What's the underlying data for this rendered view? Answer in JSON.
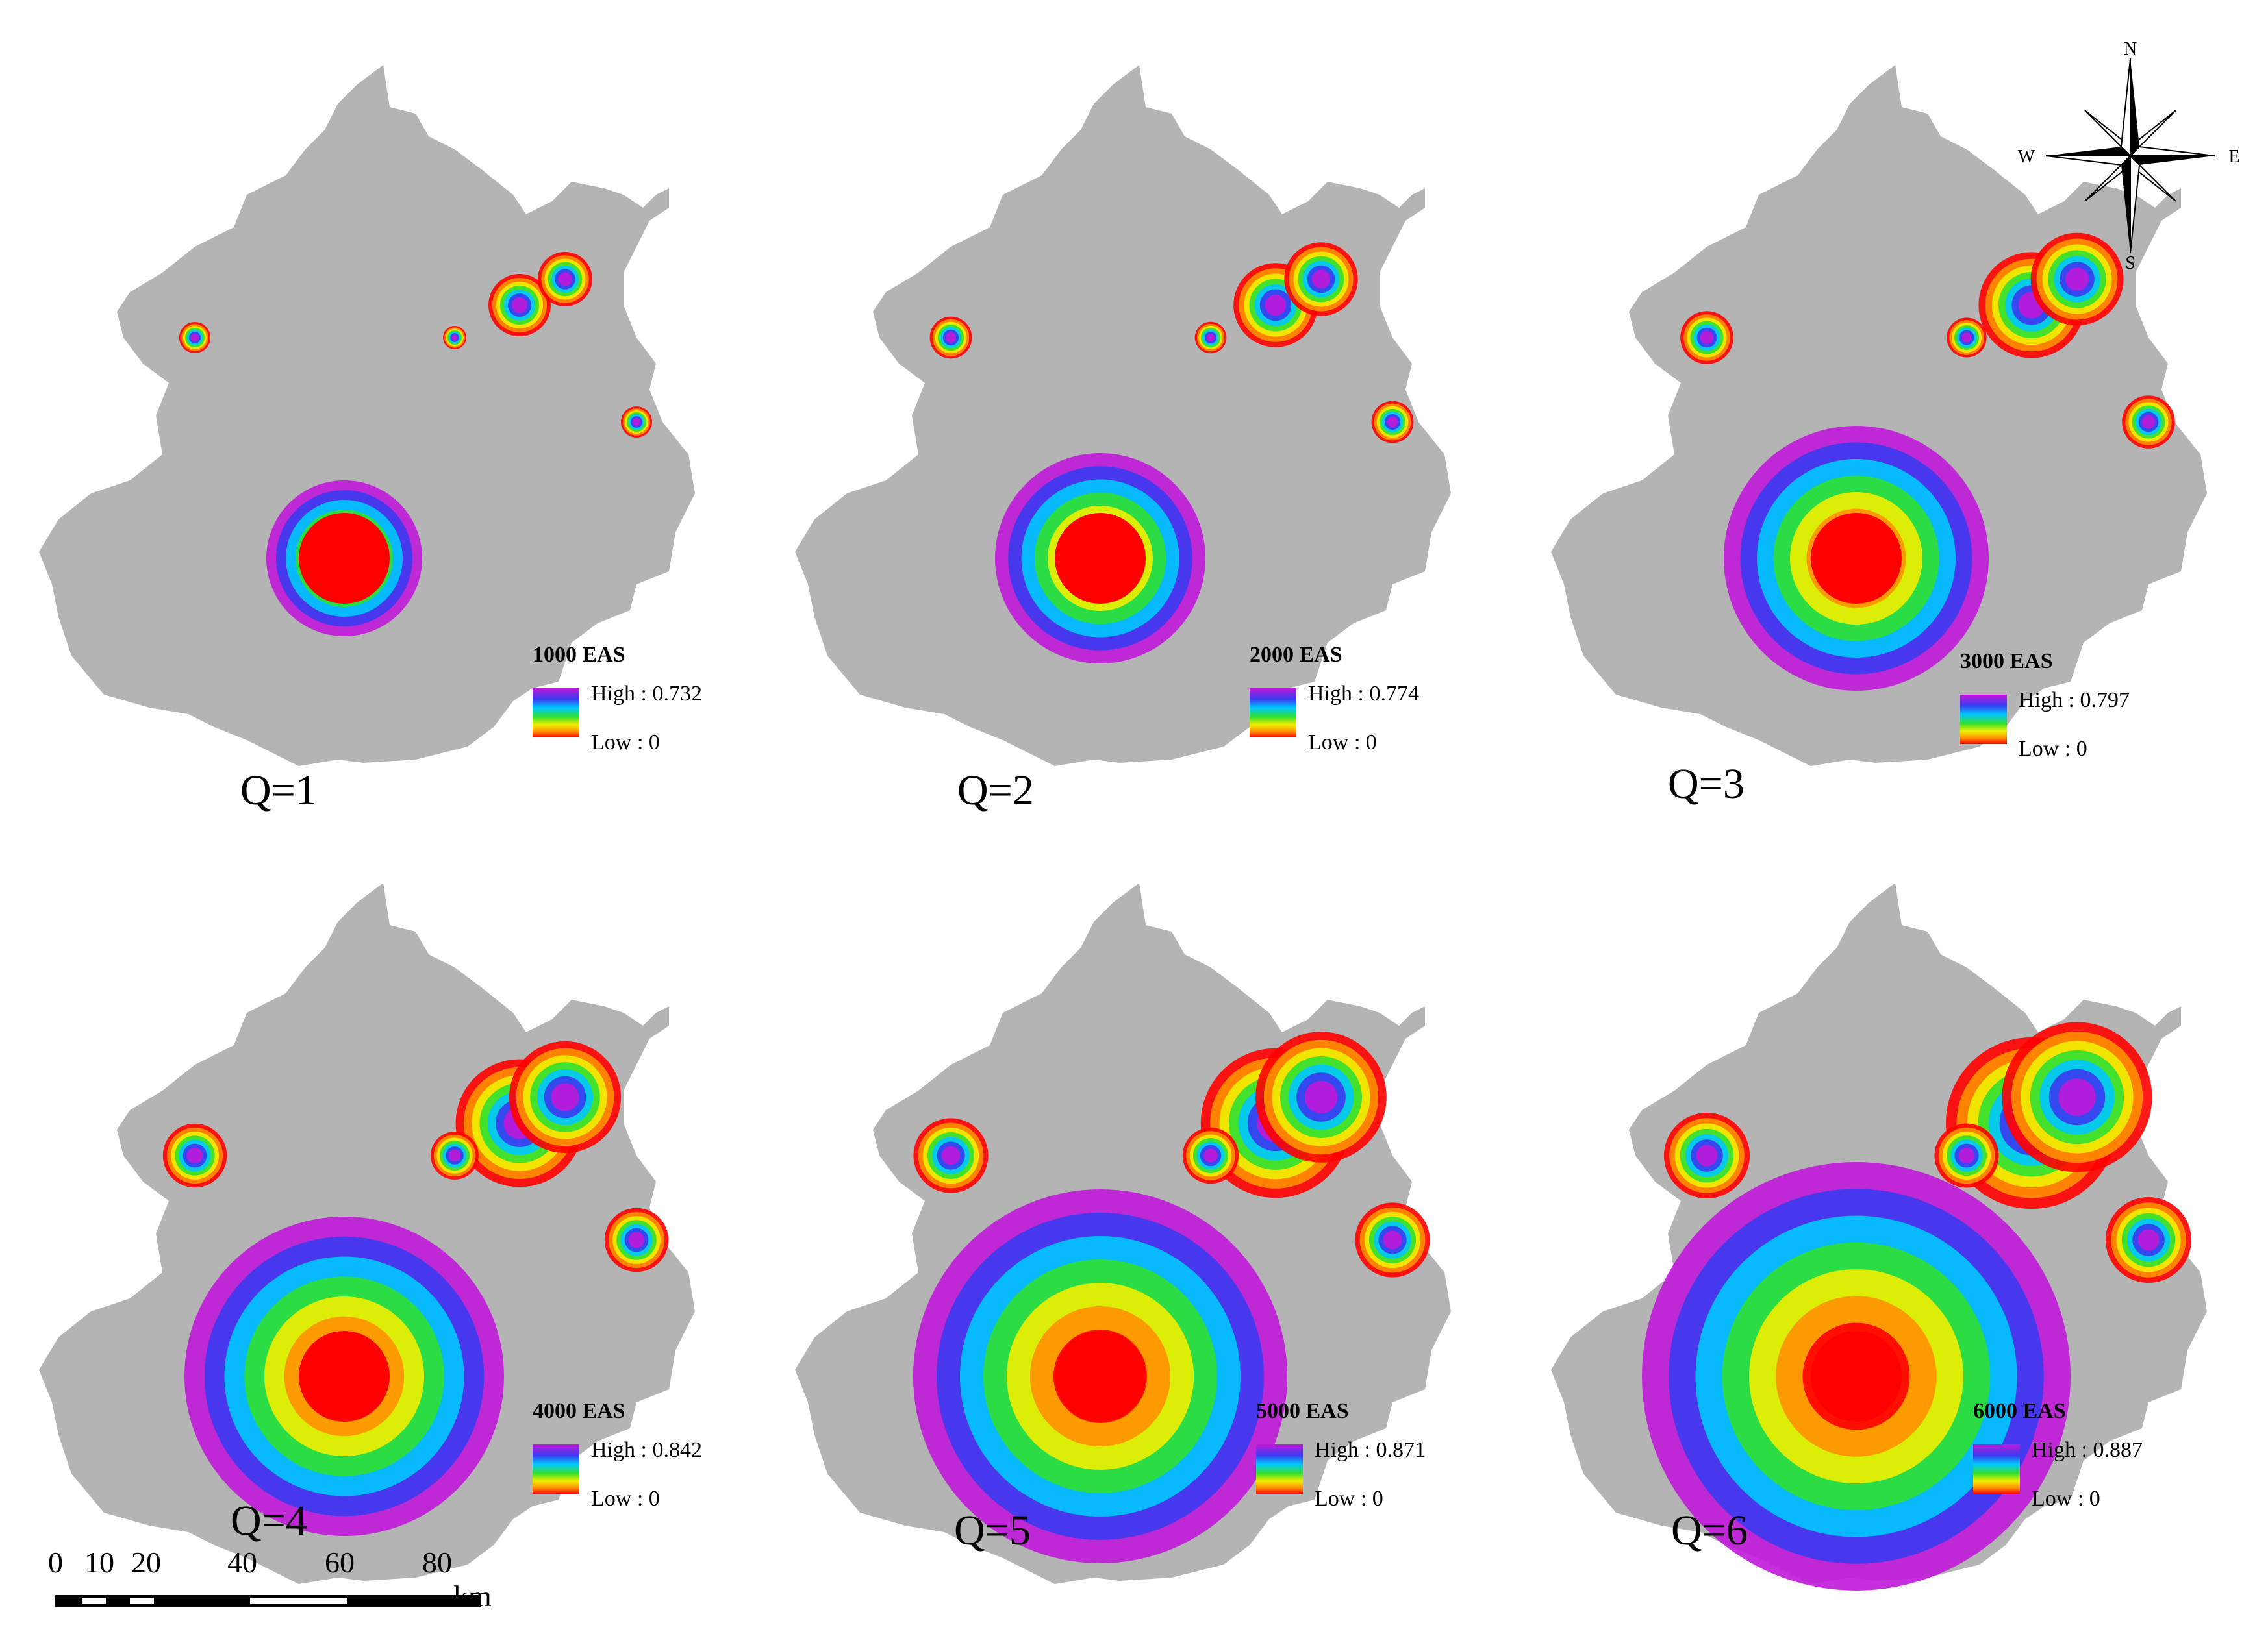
{
  "figure": {
    "panels": [
      {
        "label": "Q=1",
        "legend_title": "1000 EAS",
        "high": "High : 0.732",
        "low": "Low : 0"
      },
      {
        "label": "Q=2",
        "legend_title": "2000 EAS",
        "high": "High : 0.774",
        "low": "Low : 0"
      },
      {
        "label": "Q=3",
        "legend_title": "3000 EAS",
        "high": "High : 0.797",
        "low": "Low : 0"
      },
      {
        "label": "Q=4",
        "legend_title": "4000 EAS",
        "high": "High : 0.842",
        "low": "Low : 0"
      },
      {
        "label": "Q=5",
        "legend_title": "5000 EAS",
        "high": "High : 0.871",
        "low": "Low : 0"
      },
      {
        "label": "Q=6",
        "legend_title": "6000 EAS",
        "high": "High : 0.887",
        "low": "Low : 0"
      }
    ],
    "compass": {
      "north": "N",
      "south": "S",
      "east": "E",
      "west": "W"
    },
    "scale_bar": {
      "ticks": [
        "0",
        "10",
        "20",
        "40",
        "60",
        "80"
      ],
      "unit": "km"
    },
    "colors": {
      "region_fill": "#b4b4b4",
      "ramp": [
        "#ff0000",
        "#ff9000",
        "#f0f000",
        "#30e030",
        "#00c8ff",
        "#3a3af0",
        "#c018d8"
      ]
    }
  }
}
